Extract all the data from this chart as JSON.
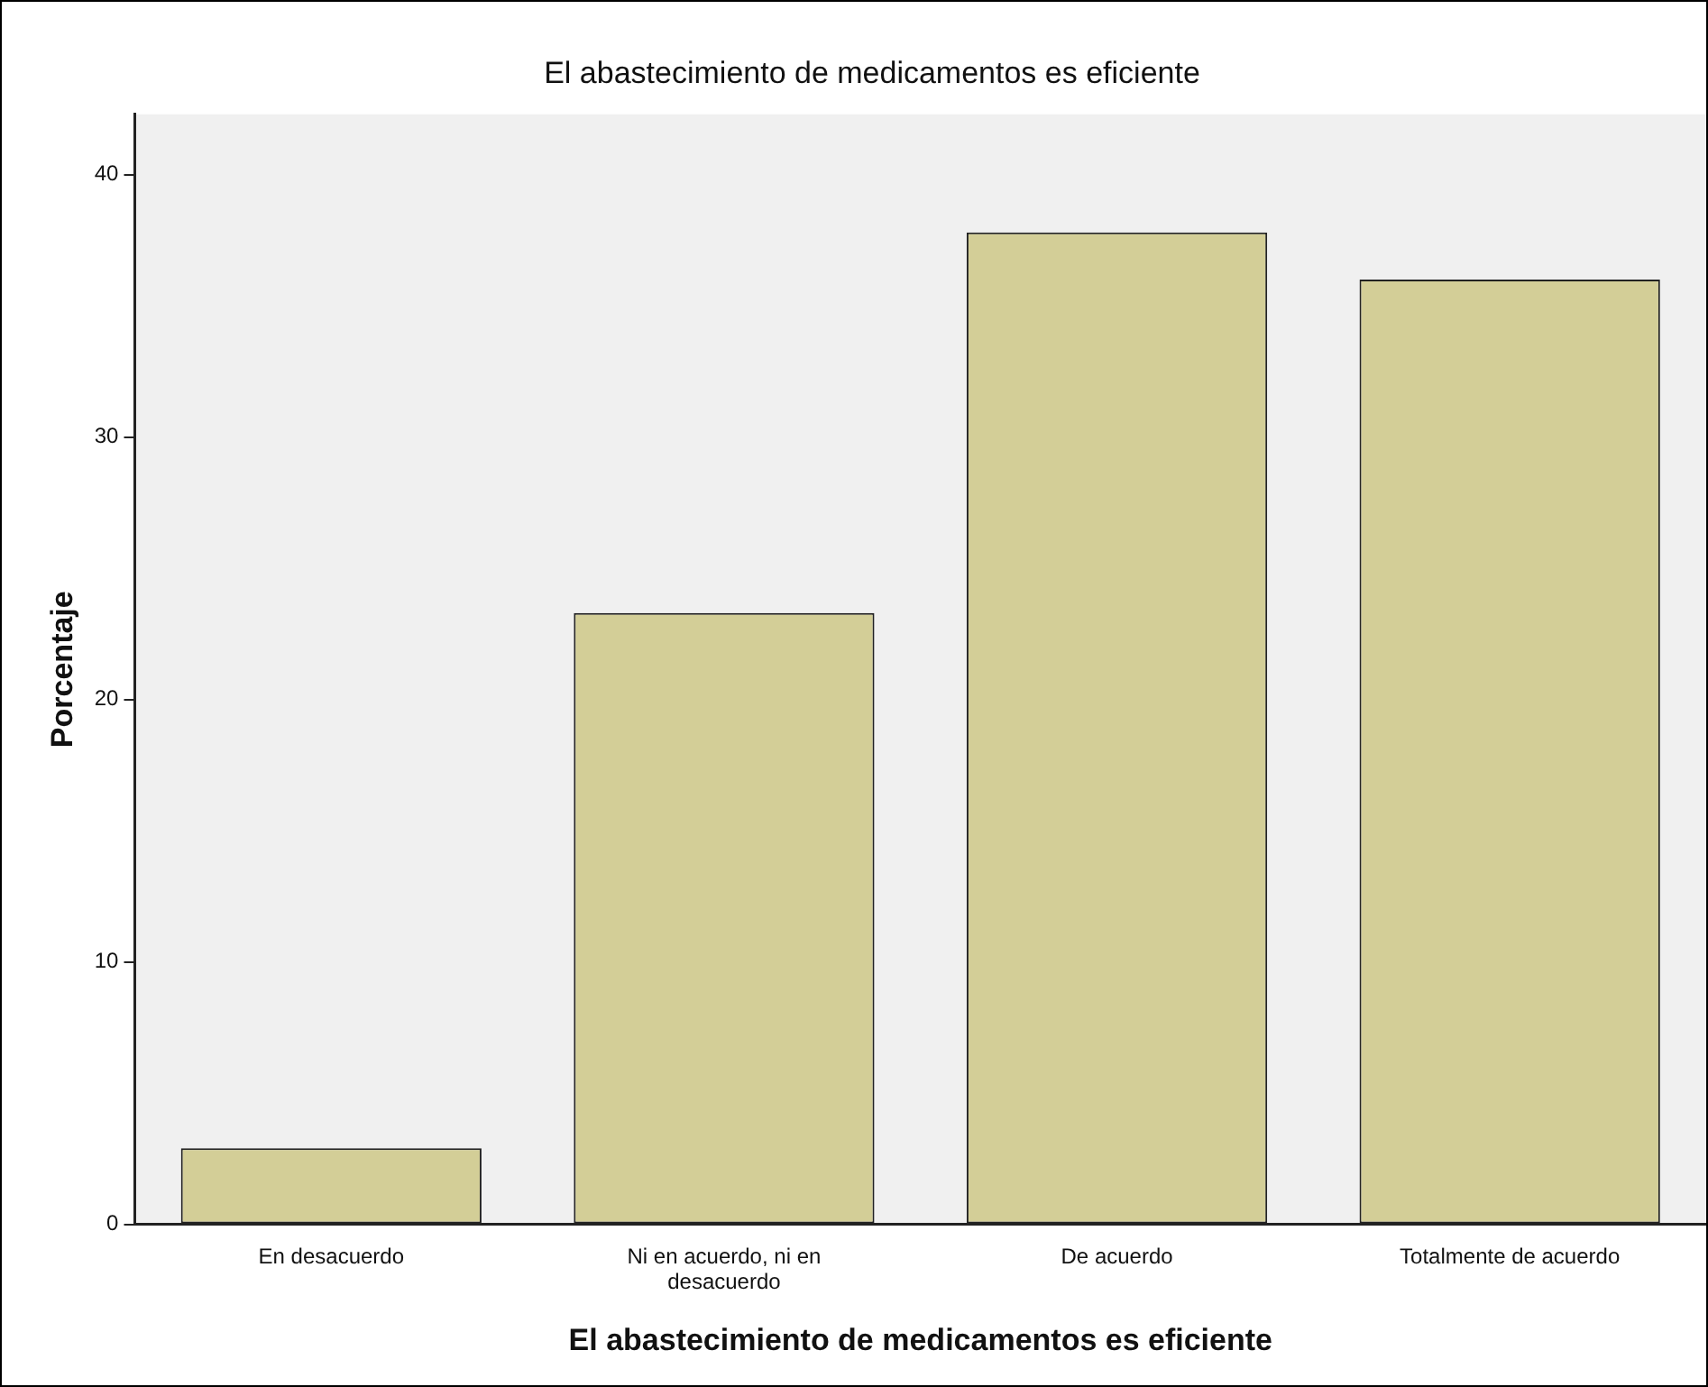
{
  "chart_data": {
    "type": "bar",
    "title": "El abastecimiento de medicamentos es eficiente",
    "xlabel": "El abastecimiento de medicamentos es eficiente",
    "ylabel": "Porcentaje",
    "categories": [
      "En desacuerdo",
      "Ni en acuerdo, ni en desacuerdo",
      "De acuerdo",
      "Totalmente de acuerdo"
    ],
    "values": [
      2.9,
      23.3,
      37.8,
      36.0
    ],
    "color": "#d3ce97",
    "ylim": [
      0,
      42.3
    ],
    "yticks": [
      0,
      10,
      20,
      30,
      40
    ],
    "grid": false,
    "legend": false
  }
}
